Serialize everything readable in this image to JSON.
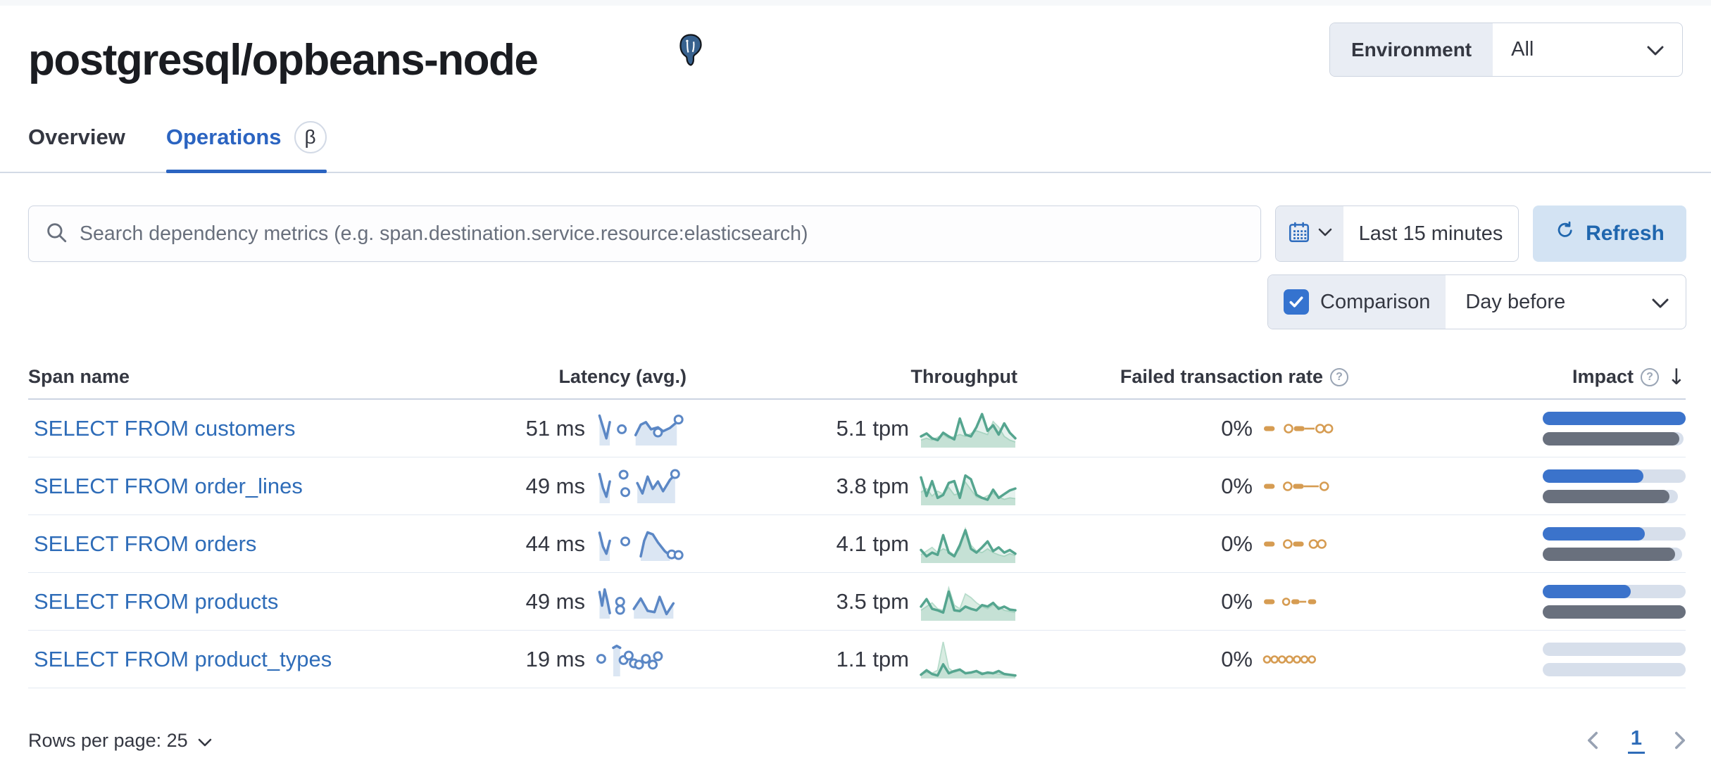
{
  "header": {
    "title": "postgresql/opbeans-node",
    "environment_label": "Environment",
    "environment_value": "All"
  },
  "tabs": {
    "overview": "Overview",
    "operations": "Operations",
    "beta_badge": "β"
  },
  "toolbar": {
    "search_placeholder": "Search dependency metrics (e.g. span.destination.service.resource:elasticsearch)",
    "time_range": "Last 15 minutes",
    "refresh_label": "Refresh",
    "comparison_label": "Comparison",
    "comparison_checked": true,
    "comparison_value": "Day before"
  },
  "table": {
    "headers": {
      "span": "Span name",
      "latency": "Latency (avg.)",
      "throughput": "Throughput",
      "failed": "Failed transaction rate",
      "impact": "Impact"
    },
    "icons": {
      "question": "?",
      "sort_descending": "↓"
    },
    "rows": [
      {
        "span_name": "SELECT FROM customers",
        "latency": "51 ms",
        "throughput": "5.1 tpm",
        "failed_rate": "0%",
        "latency_spark": {
          "segments": [
            [
              [
                2,
                10
              ],
              [
                6,
                45
              ],
              [
                10,
                80
              ],
              [
                14,
                30
              ]
            ],
            [
              [
                44,
                70
              ],
              [
                50,
                38
              ],
              [
                56,
                30
              ],
              [
                62,
                52
              ],
              [
                70,
                46
              ],
              [
                76,
                58
              ],
              [
                84,
                48
              ],
              [
                92,
                30
              ]
            ]
          ],
          "markers": [
            [
              28,
              52
            ],
            [
              70,
              62
            ],
            [
              94,
              22
            ]
          ]
        },
        "throughput_spark": {
          "current": [
            30,
            38,
            25,
            20,
            40,
            30,
            22,
            78,
            35,
            30,
            55,
            90,
            45,
            60,
            35,
            65,
            40,
            25
          ],
          "previous": [
            20,
            25,
            20,
            28,
            35,
            25,
            30,
            35,
            30,
            38,
            45,
            40,
            35,
            70,
            55,
            30,
            20,
            15
          ]
        },
        "failed_spark": [
          {
            "t": "dash",
            "x": 0,
            "w": 13
          },
          {
            "t": "circle",
            "x": 25
          },
          {
            "t": "dash",
            "x": 36,
            "w": 13
          },
          {
            "t": "line",
            "x": 49,
            "w": 12
          },
          {
            "t": "circle",
            "x": 63
          },
          {
            "t": "circle",
            "x": 73
          }
        ],
        "impact": {
          "current": 1.0,
          "current_track": 1.0,
          "previous": 0.955,
          "previous_track": 0.985
        }
      },
      {
        "span_name": "SELECT FROM order_lines",
        "latency": "49 ms",
        "throughput": "3.8 tpm",
        "failed_rate": "0%",
        "latency_spark": {
          "segments": [
            [
              [
                2,
                12
              ],
              [
                6,
                55
              ],
              [
                10,
                82
              ],
              [
                14,
                35
              ]
            ],
            [
              [
                46,
                40
              ],
              [
                52,
                72
              ],
              [
                58,
                20
              ],
              [
                64,
                58
              ],
              [
                70,
                35
              ],
              [
                76,
                65
              ],
              [
                84,
                30
              ],
              [
                90,
                14
              ]
            ]
          ],
          "markers": [
            [
              30,
              14
            ],
            [
              32,
              68
            ],
            [
              90,
              12
            ]
          ]
        },
        "throughput_spark": {
          "current": [
            75,
            25,
            65,
            20,
            28,
            60,
            65,
            20,
            80,
            70,
            28,
            20,
            15,
            42,
            20,
            30,
            40,
            45
          ],
          "previous": [
            35,
            45,
            25,
            38,
            30,
            48,
            28,
            32,
            62,
            42,
            22,
            18,
            26,
            32,
            22,
            16,
            20,
            18
          ]
        },
        "failed_spark": [
          {
            "t": "dash",
            "x": 0,
            "w": 13
          },
          {
            "t": "circle",
            "x": 24
          },
          {
            "t": "dash",
            "x": 35,
            "w": 13
          },
          {
            "t": "line",
            "x": 48,
            "w": 18
          },
          {
            "t": "circle",
            "x": 68
          }
        ],
        "impact": {
          "current": 0.705,
          "current_track": 1.0,
          "previous": 0.885,
          "previous_track": 0.945
        }
      },
      {
        "span_name": "SELECT FROM orders",
        "latency": "44 ms",
        "throughput": "4.1 tpm",
        "failed_rate": "0%",
        "latency_spark": {
          "segments": [
            [
              [
                2,
                15
              ],
              [
                6,
                58
              ],
              [
                10,
                80
              ],
              [
                14,
                40
              ]
            ],
            [
              [
                50,
                88
              ],
              [
                54,
                40
              ],
              [
                58,
                14
              ],
              [
                64,
                20
              ],
              [
                70,
                45
              ],
              [
                78,
                72
              ],
              [
                84,
                85
              ]
            ]
          ],
          "markers": [
            [
              32,
              42
            ],
            [
              86,
              82
            ],
            [
              94,
              84
            ]
          ]
        },
        "throughput_spark": {
          "current": [
            35,
            18,
            28,
            22,
            75,
            28,
            18,
            48,
            88,
            38,
            28,
            42,
            58,
            32,
            42,
            28,
            35,
            25
          ],
          "previous": [
            22,
            32,
            42,
            28,
            38,
            32,
            22,
            38,
            92,
            48,
            32,
            28,
            38,
            28,
            22,
            18,
            25,
            20
          ]
        },
        "failed_spark": [
          {
            "t": "dash",
            "x": 0,
            "w": 13
          },
          {
            "t": "circle",
            "x": 24
          },
          {
            "t": "dash",
            "x": 35,
            "w": 13
          },
          {
            "t": "circle",
            "x": 55
          },
          {
            "t": "circle",
            "x": 65
          }
        ],
        "impact": {
          "current": 0.715,
          "current_track": 1.0,
          "previous": 0.925,
          "previous_track": 0.975
        }
      },
      {
        "span_name": "SELECT FROM products",
        "latency": "49 ms",
        "throughput": "3.5 tpm",
        "failed_rate": "0%",
        "latency_spark": {
          "segments": [
            [
              [
                2,
                20
              ],
              [
                5,
                62
              ],
              [
                8,
                12
              ],
              [
                11,
                45
              ],
              [
                14,
                85
              ]
            ],
            [
              [
                42,
                72
              ],
              [
                50,
                40
              ],
              [
                58,
                78
              ],
              [
                66,
                82
              ],
              [
                72,
                35
              ],
              [
                80,
                88
              ],
              [
                88,
                55
              ]
            ]
          ],
          "markers": [
            [
              26,
              50
            ],
            [
              26,
              75
            ]
          ]
        },
        "throughput_spark": {
          "current": [
            38,
            58,
            32,
            28,
            22,
            78,
            28,
            26,
            38,
            32,
            28,
            42,
            38,
            48,
            32,
            38,
            30,
            28
          ],
          "previous": [
            28,
            38,
            48,
            32,
            28,
            88,
            42,
            32,
            72,
            62,
            48,
            38,
            32,
            42,
            38,
            28,
            25,
            22
          ]
        },
        "failed_spark": [
          {
            "t": "dash",
            "x": 0,
            "w": 13
          },
          {
            "t": "circle",
            "x": 23,
            "small": true
          },
          {
            "t": "dash",
            "x": 33,
            "w": 10
          },
          {
            "t": "line",
            "x": 43,
            "w": 8
          },
          {
            "t": "dash",
            "x": 53,
            "w": 10
          }
        ],
        "impact": {
          "current": 0.615,
          "current_track": 1.0,
          "previous": 1.0,
          "previous_track": 1.0
        }
      },
      {
        "span_name": "SELECT FROM product_types",
        "latency": "19 ms",
        "throughput": "1.1 tpm",
        "failed_rate": "0%",
        "latency_spark": {
          "segments": [
            [
              [
                18,
                14
              ],
              [
                22,
                8
              ],
              [
                26,
                14
              ]
            ]
          ],
          "markers": [
            [
              4,
              48
            ],
            [
              30,
              52
            ],
            [
              36,
              38
            ],
            [
              42,
              62
            ],
            [
              48,
              66
            ],
            [
              56,
              48
            ],
            [
              64,
              66
            ],
            [
              70,
              40
            ]
          ]
        },
        "throughput_spark": {
          "current": [
            10,
            22,
            12,
            8,
            38,
            14,
            20,
            24,
            14,
            16,
            20,
            12,
            16,
            14,
            20,
            12,
            10,
            8
          ],
          "previous": [
            12,
            16,
            14,
            22,
            98,
            28,
            16,
            22,
            16,
            14,
            20,
            16,
            12,
            14,
            12,
            10,
            8,
            6
          ]
        },
        "failed_spark": [
          {
            "t": "circle",
            "x": 0,
            "small": true
          },
          {
            "t": "circle",
            "x": 9,
            "small": true
          },
          {
            "t": "circle",
            "x": 18,
            "small": true
          },
          {
            "t": "circle",
            "x": 27,
            "small": true
          },
          {
            "t": "circle",
            "x": 36,
            "small": true
          },
          {
            "t": "circle",
            "x": 45,
            "small": true
          },
          {
            "t": "circle",
            "x": 54,
            "small": true
          }
        ],
        "impact": {
          "current": 0.0,
          "current_track": 1.0,
          "previous": 0.0,
          "previous_track": 1.0
        }
      }
    ]
  },
  "pagination": {
    "rows_per_page": "Rows per page: 25",
    "page": "1"
  },
  "colors": {
    "link": "#2e6cb8",
    "tab_active": "#2b64c1",
    "bar_blue": "#3b73cb",
    "bar_dark": "#69707d",
    "bar_light": "#d7dfeb",
    "green_line": "#55a58f",
    "green_prev_fill": "#d9ece2",
    "green_prev_line": "#b7dccb",
    "blue_line": "#5b87c5",
    "blue_fill": "#dbe6f3",
    "orange": "#d69c52"
  }
}
